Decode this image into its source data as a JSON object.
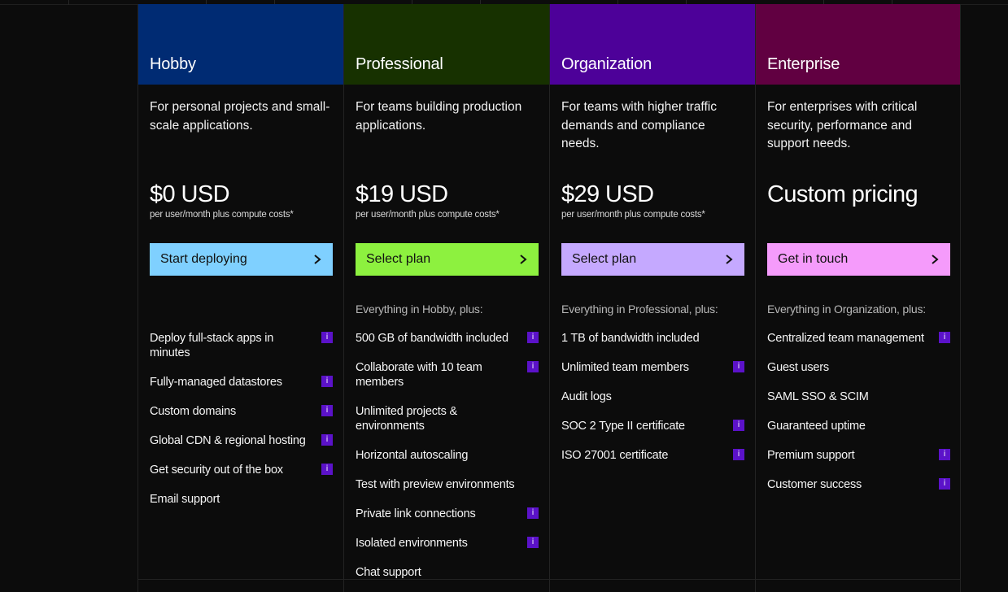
{
  "colors": {
    "hobby_header": "#002b73",
    "professional_header": "#173100",
    "organization_header": "#4d0199",
    "enterprise_header": "#610041",
    "hobby_button": "#7fd0ff",
    "professional_button": "#8df13f",
    "organization_button": "#c5a9ff",
    "enterprise_button": "#f59bfb",
    "info_badge": "#5b12c9"
  },
  "icons": {
    "cta": "chevron-right-icon",
    "feature_info": "info-icon"
  },
  "plans": [
    {
      "name": "Hobby",
      "description": "For personal projects and small-scale applications.",
      "price": "$0 USD",
      "price_note": "per user/month plus compute costs*",
      "cta": "Start deploying",
      "includes": "",
      "features": [
        {
          "text": "Deploy full-stack apps in minutes",
          "info": true
        },
        {
          "text": "Fully-managed datastores",
          "info": true
        },
        {
          "text": "Custom domains",
          "info": true
        },
        {
          "text": "Global CDN & regional hosting",
          "info": true
        },
        {
          "text": "Get security out of the box",
          "info": true
        },
        {
          "text": "Email support",
          "info": false
        }
      ]
    },
    {
      "name": "Professional",
      "description": "For teams building production applications.",
      "price": "$19 USD",
      "price_note": "per user/month plus compute costs*",
      "cta": "Select plan",
      "includes": "Everything in Hobby, plus:",
      "features": [
        {
          "text": "500 GB of bandwidth included",
          "info": true
        },
        {
          "text": "Collaborate with 10 team members",
          "info": true
        },
        {
          "text": "Unlimited projects & environments",
          "info": false
        },
        {
          "text": "Horizontal autoscaling",
          "info": false
        },
        {
          "text": "Test with preview environments",
          "info": false
        },
        {
          "text": "Private link connections",
          "info": true
        },
        {
          "text": "Isolated environments",
          "info": true
        },
        {
          "text": "Chat support",
          "info": false
        }
      ]
    },
    {
      "name": "Organization",
      "description": "For teams with higher traffic demands and compliance needs.",
      "price": "$29 USD",
      "price_note": "per user/month plus compute costs*",
      "cta": "Select plan",
      "includes": "Everything in Professional, plus:",
      "features": [
        {
          "text": "1 TB of bandwidth included",
          "info": false
        },
        {
          "text": "Unlimited team members",
          "info": true
        },
        {
          "text": "Audit logs",
          "info": false
        },
        {
          "text": "SOC 2 Type II certificate",
          "info": true
        },
        {
          "text": "ISO 27001 certificate",
          "info": true
        }
      ]
    },
    {
      "name": "Enterprise",
      "description": "For enterprises with critical security, performance and support needs.",
      "price": "Custom pricing",
      "price_note": "",
      "cta": "Get in touch",
      "includes": "Everything in Organization, plus:",
      "features": [
        {
          "text": "Centralized team management",
          "info": true
        },
        {
          "text": "Guest users",
          "info": false
        },
        {
          "text": "SAML SSO & SCIM",
          "info": false
        },
        {
          "text": "Guaranteed uptime",
          "info": false
        },
        {
          "text": "Premium support",
          "info": true
        },
        {
          "text": "Customer success",
          "info": true
        }
      ]
    }
  ]
}
